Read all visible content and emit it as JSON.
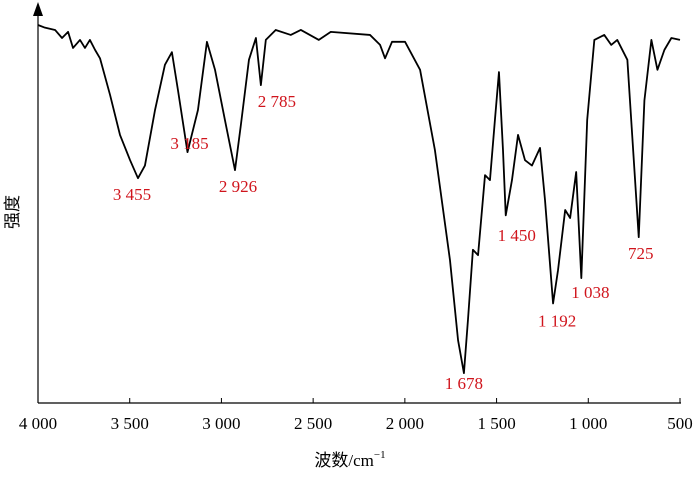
{
  "chart_data": {
    "type": "line",
    "x_label": "波数/cm",
    "x_label_power": "−1",
    "y_label": "强度",
    "xlim": [
      4000,
      500
    ],
    "ylim": [
      0,
      100
    ],
    "xticks": [
      {
        "value": 4000,
        "label": "4 000"
      },
      {
        "value": 3500,
        "label": "3 500"
      },
      {
        "value": 3000,
        "label": "3 000"
      },
      {
        "value": 2500,
        "label": "2 500"
      },
      {
        "value": 2000,
        "label": "2 000"
      },
      {
        "value": 1500,
        "label": "1 500"
      },
      {
        "value": 1000,
        "label": "1 000"
      },
      500
    ],
    "color": "#000000",
    "annotation_color": "#d0141c",
    "x": [
      4000,
      3962,
      3907,
      3869,
      3836,
      3809,
      3771,
      3744,
      3717,
      3689,
      3662,
      3607,
      3553,
      3498,
      3455,
      3417,
      3362,
      3308,
      3270,
      3237,
      3185,
      3128,
      3079,
      3035,
      2981,
      2926,
      2894,
      2850,
      2812,
      2785,
      2758,
      2704,
      2622,
      2567,
      2469,
      2404,
      2190,
      2135,
      2108,
      2070,
      1999,
      1917,
      1836,
      1754,
      1710,
      1678,
      1656,
      1629,
      1601,
      1563,
      1536,
      1509,
      1487,
      1465,
      1450,
      1416,
      1383,
      1345,
      1307,
      1263,
      1236,
      1192,
      1165,
      1126,
      1099,
      1066,
      1038,
      1006,
      967,
      913,
      875,
      842,
      787,
      725,
      694,
      656,
      623,
      585,
      547,
      500
    ],
    "values": [
      98.7,
      98,
      97.4,
      95.3,
      96.9,
      92.7,
      94.8,
      92.7,
      94.8,
      92.2,
      90,
      80.4,
      70,
      63.4,
      58.7,
      62,
      76.5,
      88.3,
      91.6,
      81.7,
      65.5,
      76.5,
      94.3,
      87,
      73.9,
      60.8,
      72.6,
      89.6,
      95.3,
      83,
      94.8,
      97.4,
      96.1,
      97.4,
      94.8,
      96.9,
      96.1,
      93.5,
      90,
      94.3,
      94.3,
      87,
      66,
      37.3,
      16.4,
      7.8,
      21.7,
      40,
      38.6,
      59.5,
      58.2,
      73.9,
      86.4,
      66,
      49,
      58.2,
      70,
      63.4,
      62,
      66.6,
      53,
      26,
      34.7,
      50.4,
      48.3,
      60.3,
      32.6,
      73.9,
      94.8,
      96.1,
      93.5,
      94.8,
      89.6,
      43.3,
      79,
      94.8,
      87,
      92.2,
      95.3,
      94.8
    ],
    "annotations": [
      {
        "text": "3 455",
        "x": 3455,
        "y": 58.7
      },
      {
        "text": "3 185",
        "x": 3185,
        "y": 65.5
      },
      {
        "text": "2 926",
        "x": 2926,
        "y": 60.8
      },
      {
        "text": "2 785",
        "x": 2785,
        "y": 83
      },
      {
        "text": "1 678",
        "x": 1678,
        "y": 7.8
      },
      {
        "text": "1 450",
        "x": 1450,
        "y": 49
      },
      {
        "text": "1 192",
        "x": 1192,
        "y": 26
      },
      {
        "text": "1 038",
        "x": 1038,
        "y": 32.6
      },
      {
        "text": "725",
        "x": 725,
        "y": 43.3
      }
    ]
  }
}
